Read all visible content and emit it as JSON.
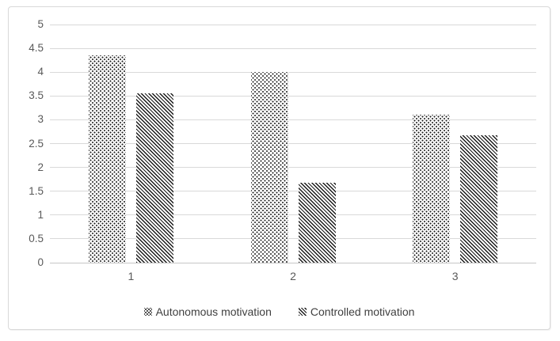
{
  "chart_data": {
    "type": "bar",
    "title": "",
    "xlabel": "",
    "ylabel": "",
    "categories": [
      "1",
      "2",
      "3"
    ],
    "series": [
      {
        "name": "Autonomous motivation",
        "pattern": "dots",
        "values": [
          4.35,
          4.0,
          3.1
        ]
      },
      {
        "name": "Controlled motivation",
        "pattern": "diagonal-stripes-down",
        "values": [
          3.55,
          1.68,
          2.68
        ]
      }
    ],
    "ylim": [
      0,
      5
    ],
    "ytick_step": 0.5,
    "ytick_labels": [
      "5",
      "4.5",
      "4",
      "3.5",
      "3",
      "2.5",
      "2",
      "1.5",
      "1",
      "0.5",
      "0"
    ],
    "grid": true,
    "legend_position": "bottom",
    "legend": [
      "Autonomous motivation",
      "Controlled motivation"
    ]
  },
  "colors": {
    "background": "#ffffff",
    "chart_border": "#d9d9d9",
    "gridline": "#d9d9d9",
    "axis_line": "#c6c6c6",
    "tick_label": "#595959",
    "legend_text": "#404040",
    "pattern_ink": "#1a1a1a",
    "bar_fill": "#ffffff"
  }
}
